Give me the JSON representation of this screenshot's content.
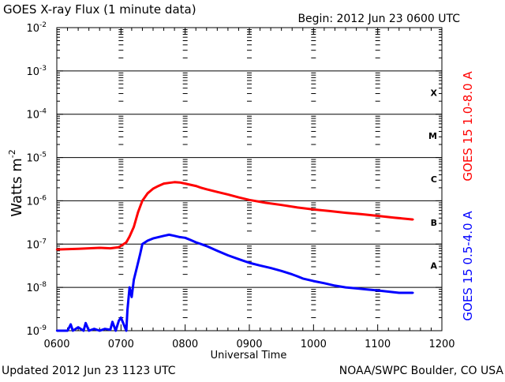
{
  "chart_data": {
    "type": "line",
    "title": "GOES X-ray Flux (1 minute data)",
    "begin_label": "Begin: 2012 Jun 23 0600 UTC",
    "xlabel": "Universal Time",
    "x_ticks": [
      "0600",
      "0700",
      "0800",
      "0900",
      "1000",
      "1100",
      "1200"
    ],
    "xlim_minutes": [
      0,
      360
    ],
    "ylabel": "Watts m",
    "ylabel_superscript": "-2",
    "y_scale": "log",
    "ylim": [
      1e-09,
      0.01
    ],
    "y_ticks": [
      {
        "base": "10",
        "exp": "-9"
      },
      {
        "base": "10",
        "exp": "-8"
      },
      {
        "base": "10",
        "exp": "-7"
      },
      {
        "base": "10",
        "exp": "-6"
      },
      {
        "base": "10",
        "exp": "-5"
      },
      {
        "base": "10",
        "exp": "-4"
      },
      {
        "base": "10",
        "exp": "-3"
      },
      {
        "base": "10",
        "exp": "-2"
      }
    ],
    "flare_classes": [
      {
        "label": "A",
        "exponent": -7.5
      },
      {
        "label": "B",
        "exponent": -6.5
      },
      {
        "label": "C",
        "exponent": -5.5
      },
      {
        "label": "M",
        "exponent": -4.5
      },
      {
        "label": "X",
        "exponent": -3.5
      }
    ],
    "grid": "horizontal lines at each decade; dotted vertical ticks at each hour",
    "series": [
      {
        "name": "GOES 15 1.0-8.0 A",
        "color": "#ff0000",
        "x_minutes": [
          0,
          20,
          40,
          50,
          58,
          65,
          68,
          72,
          76,
          80,
          85,
          90,
          95,
          100,
          105,
          110,
          115,
          120,
          125,
          130,
          135,
          140,
          150,
          160,
          170,
          180,
          195,
          210,
          225,
          240,
          255,
          270,
          285,
          300,
          315,
          333
        ],
        "values": [
          7.5e-08,
          7.8e-08,
          8.2e-08,
          8e-08,
          8.5e-08,
          1.1e-07,
          1.5e-07,
          2.5e-07,
          5.5e-07,
          1e-06,
          1.5e-06,
          1.9e-06,
          2.2e-06,
          2.5e-06,
          2.6e-06,
          2.7e-06,
          2.65e-06,
          2.5e-06,
          2.35e-06,
          2.2e-06,
          2e-06,
          1.85e-06,
          1.6e-06,
          1.4e-06,
          1.2e-06,
          1.05e-06,
          9e-07,
          8e-07,
          7e-07,
          6.3e-07,
          5.8e-07,
          5.3e-07,
          4.9e-07,
          4.5e-07,
          4.1e-07,
          3.7e-07
        ]
      },
      {
        "name": "GOES 15 0.5-4.0 A",
        "color": "#0000ff",
        "x_minutes": [
          0,
          10,
          13,
          15,
          20,
          25,
          27,
          30,
          35,
          40,
          45,
          50,
          52,
          55,
          58,
          60,
          65,
          66,
          68,
          70,
          72,
          75,
          78,
          80,
          85,
          90,
          95,
          100,
          105,
          110,
          115,
          120,
          125,
          130,
          135,
          140,
          150,
          160,
          170,
          180,
          190,
          200,
          210,
          220,
          225,
          230,
          240,
          250,
          260,
          270,
          280,
          290,
          300,
          310,
          320,
          333
        ],
        "values": [
          1e-09,
          1e-09,
          1.4e-09,
          1e-09,
          1.2e-09,
          1e-09,
          1.5e-09,
          1e-09,
          1.1e-09,
          1e-09,
          1.1e-09,
          1.05e-09,
          1.6e-09,
          1e-09,
          1.7e-09,
          2e-09,
          1e-09,
          3e-09,
          1e-08,
          6e-09,
          1.5e-08,
          3e-08,
          6e-08,
          1e-07,
          1.2e-07,
          1.35e-07,
          1.45e-07,
          1.55e-07,
          1.65e-07,
          1.55e-07,
          1.45e-07,
          1.4e-07,
          1.25e-07,
          1.1e-07,
          1e-07,
          9e-08,
          7e-08,
          5.5e-08,
          4.5e-08,
          3.7e-08,
          3.2e-08,
          2.8e-08,
          2.4e-08,
          2e-08,
          1.8e-08,
          1.6e-08,
          1.4e-08,
          1.25e-08,
          1.1e-08,
          1e-08,
          9.5e-09,
          9e-09,
          8.5e-09,
          8e-09,
          7.5e-09,
          7.5e-09
        ]
      }
    ]
  },
  "footer": {
    "updated": "Updated 2012 Jun 23 1123 UTC",
    "credit": "NOAA/SWPC Boulder, CO USA"
  }
}
